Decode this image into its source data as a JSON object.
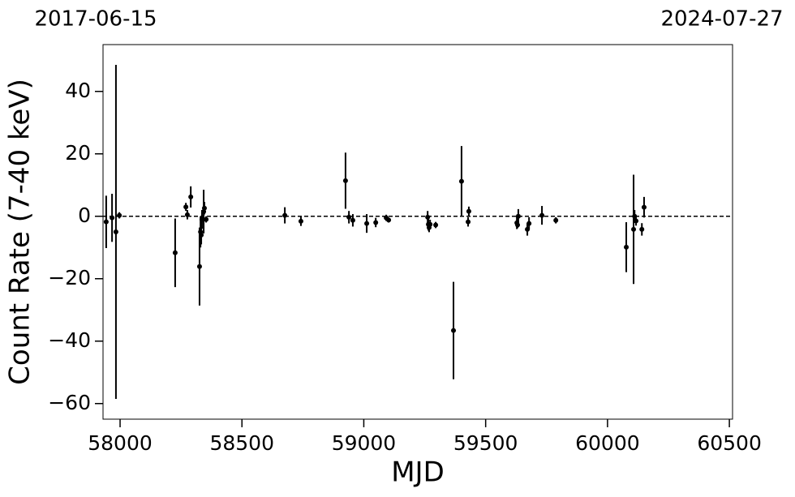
{
  "chart_data": {
    "type": "scatter",
    "annotations": [
      "2017-06-15",
      "2024-07-27"
    ],
    "x_label": "MJD",
    "y_label": "Count Rate (7-40 keV)",
    "color": "#000000",
    "hline": 0,
    "xlim": [
      57930,
      60513
    ],
    "ylim": [
      -65,
      55
    ],
    "xticks": [
      58000,
      58500,
      59000,
      59500,
      60000,
      60500
    ],
    "yticks": [
      {
        "value": -60,
        "label": "−60"
      },
      {
        "value": -40,
        "label": "−40"
      },
      {
        "value": -20,
        "label": "−20"
      },
      0,
      20,
      40
    ],
    "x": [
      57943,
      57967,
      57983,
      57997,
      58226,
      58270,
      58276,
      58290,
      58326,
      58330,
      58333,
      58336,
      58343,
      58346,
      58353,
      58676,
      58742,
      58925,
      58939,
      58955,
      59012,
      59049,
      59092,
      59102,
      59262,
      59265,
      59268,
      59272,
      59295,
      59368,
      59401,
      59428,
      59431,
      59628,
      59631,
      59634,
      59671,
      59678,
      59731,
      59788,
      60077,
      60107,
      60111,
      60117,
      60141,
      60150
    ],
    "values": [
      -1.8,
      -0.5,
      -5,
      0.3,
      -11.7,
      3,
      0.5,
      6.2,
      -16.1,
      -5,
      -6,
      -1,
      1.5,
      2.6,
      -1,
      0.3,
      -1.6,
      11.4,
      -0.3,
      -1.3,
      -2.3,
      -2,
      -0.5,
      -1.2,
      -0.3,
      -2.6,
      -3.6,
      -2.6,
      -2.8,
      -36.6,
      11.2,
      -1.8,
      1.6,
      -2.1,
      -2.8,
      0,
      -4.2,
      -2.3,
      0.3,
      -1.3,
      -9.9,
      -4.2,
      0,
      -1.5,
      -4.2,
      2.9
    ],
    "errors": [
      8.4,
      7.7,
      53.5,
      1,
      11,
      1.3,
      1.5,
      3.4,
      12.5,
      5,
      3,
      3,
      7,
      2,
      1,
      2.6,
      1.5,
      9,
      2,
      2,
      3,
      1.5,
      1,
      0.8,
      2,
      2,
      1.5,
      1.5,
      1,
      15.6,
      11.3,
      1.5,
      1.5,
      2,
      1,
      2.3,
      2,
      2,
      3,
      1,
      8,
      17.5,
      2,
      1.5,
      2,
      3.3
    ]
  }
}
